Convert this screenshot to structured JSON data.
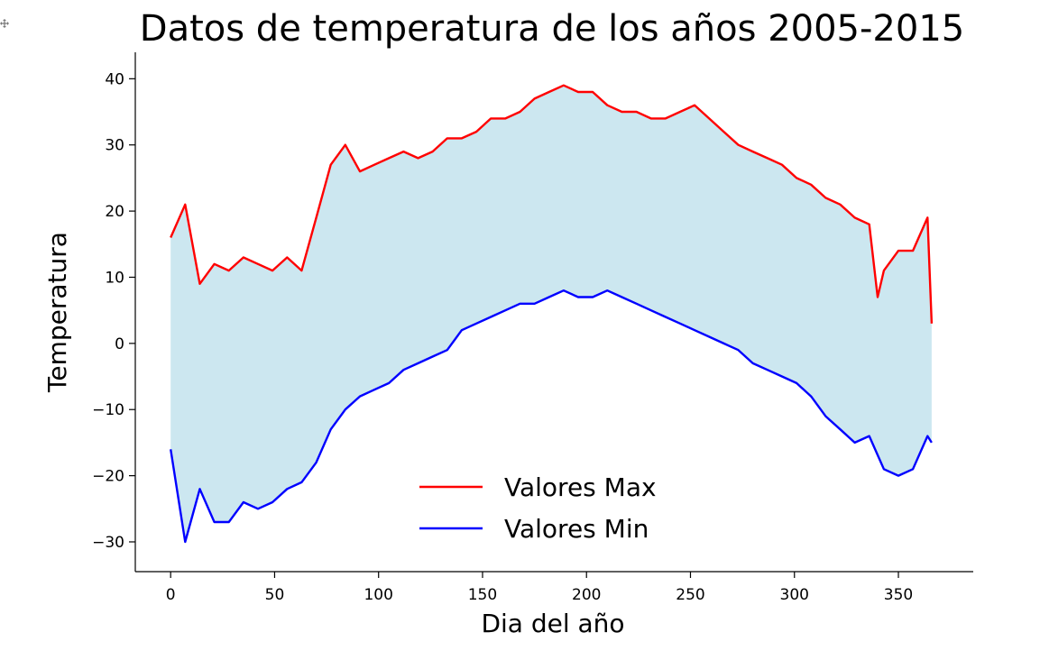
{
  "cell": {
    "expand_icon": "expand-arrows-icon"
  },
  "chart_data": {
    "type": "line",
    "title": "Datos de temperatura de los años 2005-2015",
    "xlabel": "Dia del año",
    "ylabel": "Temperatura",
    "xlim": [
      -17,
      386
    ],
    "ylim": [
      -34.5,
      44
    ],
    "xticks": [
      0,
      50,
      100,
      150,
      200,
      250,
      300,
      350
    ],
    "yticks": [
      -30,
      -20,
      -10,
      0,
      10,
      20,
      30,
      40
    ],
    "grid": false,
    "fill_between": {
      "color": "#add8e6",
      "description": "shaded area between min and max"
    },
    "legend": {
      "position": "lower center",
      "entries": [
        {
          "label": "Valores Max",
          "color": "#ff0000"
        },
        {
          "label": "Valores Min",
          "color": "#0000ff"
        }
      ]
    },
    "series": [
      {
        "name": "Valores Max",
        "color": "#ff0000",
        "x": [
          0,
          7,
          14,
          21,
          28,
          35,
          42,
          49,
          56,
          63,
          70,
          77,
          84,
          91,
          98,
          105,
          112,
          119,
          126,
          133,
          140,
          147,
          154,
          161,
          168,
          175,
          182,
          189,
          196,
          203,
          210,
          217,
          224,
          231,
          238,
          245,
          252,
          259,
          266,
          273,
          280,
          287,
          294,
          301,
          308,
          315,
          322,
          329,
          336,
          340,
          343,
          350,
          357,
          364,
          366
        ],
        "values": [
          16,
          21,
          9,
          12,
          11,
          13,
          12,
          11,
          13,
          11,
          19,
          27,
          30,
          26,
          27,
          28,
          29,
          28,
          29,
          31,
          31,
          32,
          34,
          34,
          35,
          37,
          38,
          39,
          38,
          38,
          36,
          35,
          35,
          34,
          34,
          35,
          36,
          34,
          32,
          30,
          29,
          28,
          27,
          25,
          24,
          22,
          21,
          19,
          18,
          7,
          11,
          14,
          14,
          19,
          3
        ]
      },
      {
        "name": "Valores Min",
        "color": "#0000ff",
        "x": [
          0,
          7,
          14,
          21,
          28,
          35,
          42,
          49,
          56,
          63,
          70,
          77,
          84,
          91,
          98,
          105,
          112,
          119,
          126,
          133,
          140,
          147,
          154,
          161,
          168,
          175,
          182,
          189,
          196,
          203,
          210,
          217,
          224,
          231,
          238,
          245,
          252,
          259,
          266,
          273,
          280,
          287,
          294,
          301,
          308,
          315,
          322,
          329,
          336,
          343,
          350,
          357,
          364,
          366
        ],
        "values": [
          -16,
          -30,
          -22,
          -27,
          -27,
          -24,
          -25,
          -24,
          -22,
          -21,
          -18,
          -13,
          -10,
          -8,
          -7,
          -6,
          -4,
          -3,
          -2,
          -1,
          2,
          3,
          4,
          5,
          6,
          6,
          7,
          8,
          7,
          7,
          8,
          7,
          6,
          5,
          4,
          3,
          2,
          1,
          0,
          -1,
          -3,
          -4,
          -5,
          -6,
          -8,
          -11,
          -13,
          -15,
          -14,
          -19,
          -20,
          -19,
          -14,
          -15
        ]
      }
    ]
  }
}
